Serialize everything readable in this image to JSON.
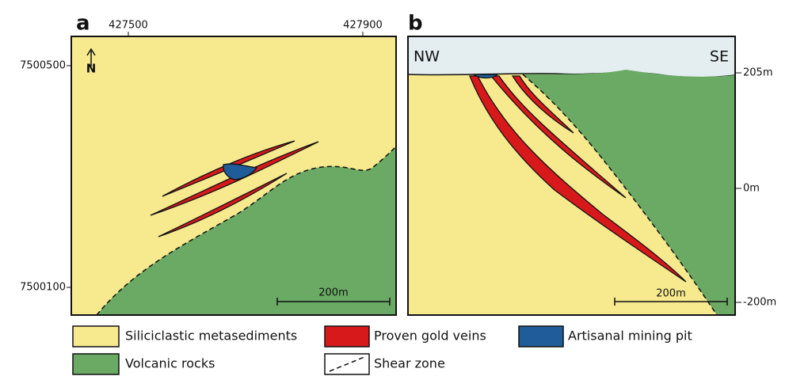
{
  "panel_a": {
    "label": "a",
    "x_ticks": [
      "427500",
      "427900"
    ],
    "y_ticks": [
      "7500500",
      "7500100"
    ],
    "north": "N",
    "scale": "200m"
  },
  "panel_b": {
    "label": "b",
    "left": "NW",
    "right": "SE",
    "depth_ticks": [
      "205m",
      "0m",
      "-200m"
    ],
    "scale": "200m"
  },
  "legend": [
    "Siliciclastic metasediments",
    "Proven gold veins",
    "Artisanal mining pit",
    "Volcanic rocks",
    "Shear zone"
  ]
}
